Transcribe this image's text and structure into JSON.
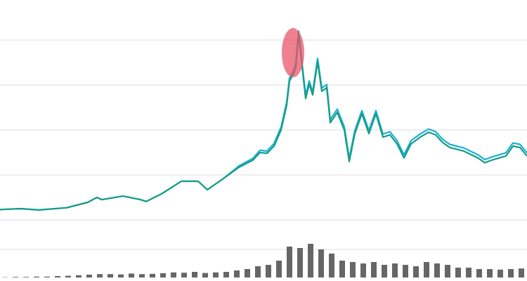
{
  "chart_data": [
    {
      "type": "line",
      "x": [
        0,
        30,
        55,
        95,
        125,
        138,
        145,
        175,
        200,
        208,
        230,
        258,
        282,
        295,
        318,
        340,
        360,
        370,
        380,
        390,
        400,
        408,
        412,
        418,
        421,
        425,
        430,
        435,
        440,
        445,
        452,
        458,
        465,
        470,
        480,
        490,
        497,
        505,
        515,
        525,
        535,
        545,
        555,
        565,
        575,
        585,
        598,
        610,
        620,
        630,
        640,
        660,
        680,
        690,
        700,
        720,
        730,
        740,
        750
      ],
      "xlim": [
        0,
        750
      ],
      "ylim": [
        0,
        4.89
      ],
      "yticks": [
        0,
        1,
        2,
        3,
        4
      ],
      "grid": true,
      "series": [
        {
          "color": "#1ab0d6",
          "values": [
            0.23,
            0.25,
            0.22,
            0.27,
            0.39,
            0.5,
            0.45,
            0.53,
            0.45,
            0.41,
            0.58,
            0.86,
            0.86,
            0.67,
            0.92,
            1.2,
            1.37,
            1.55,
            1.53,
            1.7,
            2.06,
            2.62,
            3.16,
            3.32,
            3.48,
            4.2,
            3.47,
            2.77,
            3.09,
            2.85,
            3.59,
            2.93,
            3.01,
            2.23,
            2.46,
            2.07,
            1.37,
            1.99,
            2.43,
            1.99,
            2.43,
            1.91,
            1.96,
            1.76,
            1.45,
            1.76,
            1.91,
            2.02,
            1.96,
            1.79,
            1.68,
            1.6,
            1.45,
            1.34,
            1.4,
            1.49,
            1.71,
            1.68,
            1.49
          ]
        },
        {
          "color": "#169c84",
          "values": [
            0.23,
            0.25,
            0.22,
            0.27,
            0.39,
            0.5,
            0.45,
            0.53,
            0.45,
            0.41,
            0.58,
            0.86,
            0.86,
            0.67,
            0.92,
            1.17,
            1.33,
            1.5,
            1.48,
            1.64,
            2.0,
            2.55,
            3.09,
            3.25,
            3.41,
            4.14,
            3.41,
            2.7,
            3.02,
            2.78,
            3.52,
            2.86,
            2.94,
            2.16,
            2.39,
            2.0,
            1.3,
            1.92,
            2.36,
            1.92,
            2.36,
            1.84,
            1.89,
            1.69,
            1.38,
            1.69,
            1.84,
            1.95,
            1.89,
            1.72,
            1.61,
            1.53,
            1.38,
            1.27,
            1.33,
            1.42,
            1.64,
            1.61,
            1.42
          ]
        }
      ]
    },
    {
      "type": "bar",
      "x": [
        7,
        22,
        37,
        52,
        67,
        82,
        97,
        112,
        127,
        142,
        157,
        172,
        187,
        202,
        217,
        232,
        247,
        262,
        277,
        292,
        307,
        322,
        337,
        352,
        367,
        382,
        397,
        412,
        427,
        442,
        457,
        472,
        487,
        502,
        517,
        532,
        547,
        562,
        577,
        592,
        607,
        622,
        637,
        652,
        667,
        682,
        697,
        712,
        727,
        742
      ],
      "xlim": [
        0,
        750
      ],
      "ylim": [
        0,
        1.4
      ],
      "yticks": [
        1
      ],
      "grid": true,
      "color": "#666666",
      "values": [
        0.01,
        0.02,
        0.02,
        0.03,
        0.03,
        0.05,
        0.06,
        0.08,
        0.1,
        0.12,
        0.12,
        0.11,
        0.14,
        0.12,
        0.13,
        0.15,
        0.18,
        0.17,
        0.2,
        0.16,
        0.18,
        0.2,
        0.25,
        0.3,
        0.4,
        0.45,
        0.6,
        1.1,
        1.05,
        1.2,
        1.0,
        0.85,
        0.6,
        0.55,
        0.5,
        0.55,
        0.45,
        0.5,
        0.45,
        0.4,
        0.55,
        0.5,
        0.45,
        0.35,
        0.35,
        0.3,
        0.3,
        0.28,
        0.3,
        0.32
      ]
    }
  ]
}
